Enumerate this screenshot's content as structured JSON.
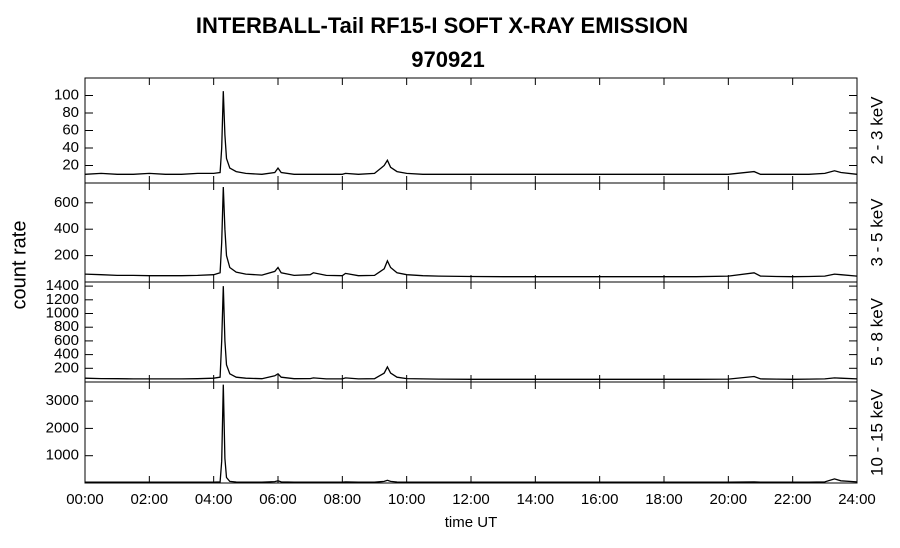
{
  "chart_data": {
    "type": "line",
    "title": "INTERBALL-Tail RF15-I SOFT X-RAY EMISSION",
    "subtitle": "970921",
    "x_label": "time UT",
    "y_label": "count rate",
    "x": [
      0,
      0.5,
      1,
      1.5,
      2,
      2.5,
      3,
      3.5,
      4,
      4.2,
      4.25,
      4.3,
      4.35,
      4.4,
      4.5,
      4.7,
      5,
      5.5,
      5.9,
      6,
      6.1,
      6.5,
      7,
      7.1,
      7.5,
      8,
      8.1,
      8.5,
      9,
      9.3,
      9.4,
      9.5,
      9.7,
      10,
      10.5,
      11,
      12,
      13,
      14,
      15,
      16,
      17,
      18,
      19,
      20,
      20.8,
      21,
      21.5,
      22,
      22.5,
      23,
      23.3,
      23.5,
      24
    ],
    "xlim": [
      0,
      24
    ],
    "xticks": [
      {
        "value": 0,
        "label": "00:00"
      },
      {
        "value": 2,
        "label": "02:00"
      },
      {
        "value": 4,
        "label": "04:00"
      },
      {
        "value": 6,
        "label": "06:00"
      },
      {
        "value": 8,
        "label": "08:00"
      },
      {
        "value": 10,
        "label": "10:00"
      },
      {
        "value": 12,
        "label": "12:00"
      },
      {
        "value": 14,
        "label": "14:00"
      },
      {
        "value": 16,
        "label": "16:00"
      },
      {
        "value": 18,
        "label": "18:00"
      },
      {
        "value": 20,
        "label": "20:00"
      },
      {
        "value": 22,
        "label": "22:00"
      },
      {
        "value": 24,
        "label": "24:00"
      }
    ],
    "panels": [
      {
        "name": "2 - 3 keV",
        "color": "#000000",
        "ylim": [
          0,
          120
        ],
        "yticks": [
          20,
          40,
          60,
          80,
          100
        ],
        "values": [
          10,
          11,
          10,
          10,
          11,
          10,
          10,
          11,
          11,
          12,
          40,
          105,
          55,
          28,
          17,
          13,
          11,
          10,
          12,
          17,
          12,
          10,
          10,
          10,
          10,
          10,
          11,
          10,
          11,
          20,
          26,
          18,
          13,
          11,
          10,
          10,
          10,
          10,
          10,
          10,
          10,
          10,
          10,
          10,
          10,
          13,
          10,
          10,
          10,
          10,
          11,
          14,
          12,
          10
        ]
      },
      {
        "name": "3 - 5 keV",
        "color": "#000000",
        "ylim": [
          0,
          750
        ],
        "yticks": [
          200,
          400,
          600
        ],
        "values": [
          60,
          55,
          50,
          50,
          48,
          48,
          48,
          50,
          55,
          70,
          300,
          720,
          400,
          200,
          110,
          75,
          60,
          52,
          80,
          110,
          70,
          50,
          55,
          70,
          50,
          48,
          65,
          48,
          50,
          100,
          160,
          110,
          70,
          55,
          48,
          45,
          42,
          40,
          40,
          40,
          40,
          40,
          40,
          40,
          45,
          70,
          45,
          42,
          40,
          42,
          45,
          60,
          55,
          45
        ]
      },
      {
        "name": "5 - 8 keV",
        "color": "#000000",
        "ylim": [
          0,
          1460
        ],
        "yticks": [
          200,
          400,
          600,
          800,
          1000,
          1200,
          1400
        ],
        "values": [
          55,
          50,
          48,
          45,
          45,
          45,
          45,
          48,
          55,
          70,
          600,
          1400,
          600,
          250,
          120,
          70,
          55,
          48,
          90,
          120,
          70,
          48,
          50,
          60,
          45,
          45,
          60,
          45,
          48,
          130,
          220,
          130,
          70,
          50,
          45,
          42,
          40,
          40,
          40,
          40,
          40,
          40,
          40,
          40,
          42,
          80,
          45,
          42,
          40,
          42,
          45,
          60,
          55,
          45
        ]
      },
      {
        "name": "10 - 15 keV",
        "color": "#000000",
        "ylim": [
          0,
          3700
        ],
        "yticks": [
          1000,
          2000,
          3000
        ],
        "values": [
          30,
          30,
          30,
          30,
          30,
          30,
          30,
          30,
          30,
          40,
          800,
          3600,
          900,
          200,
          60,
          35,
          30,
          30,
          50,
          80,
          40,
          30,
          30,
          30,
          30,
          30,
          40,
          30,
          30,
          60,
          100,
          60,
          35,
          30,
          30,
          30,
          30,
          30,
          30,
          30,
          30,
          30,
          30,
          30,
          30,
          40,
          30,
          30,
          30,
          30,
          40,
          150,
          80,
          40
        ]
      }
    ]
  }
}
